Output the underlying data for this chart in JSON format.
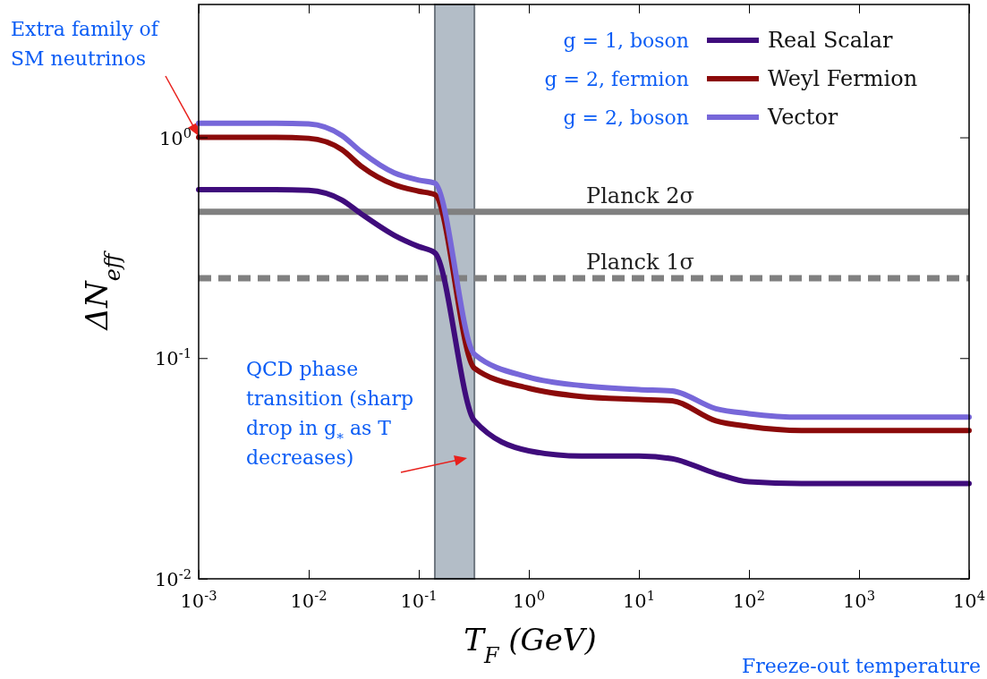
{
  "chart_data": {
    "type": "line",
    "xlabel": "T$_{F}$ (GeV)",
    "ylabel": "ΔN$_{eff}$",
    "log": "xy",
    "xlim": [
      0.001,
      10000
    ],
    "ylim": [
      0.01,
      4
    ],
    "xticks": [
      {
        "value": 0.001,
        "label": "10$^{-3}$"
      },
      {
        "value": 0.01,
        "label": "10$^{-2}$"
      },
      {
        "value": 0.1,
        "label": "10$^{-1}$"
      },
      {
        "value": 1,
        "label": "10$^{0}$"
      },
      {
        "value": 10,
        "label": "10$^{1}$"
      },
      {
        "value": 100,
        "label": "10$^{2}$"
      },
      {
        "value": 1000,
        "label": "10$^{3}$"
      },
      {
        "value": 10000,
        "label": "10$^{4}$"
      }
    ],
    "yticks": [
      {
        "value": 0.01,
        "label": "10$^{-2}$"
      },
      {
        "value": 0.1,
        "label": "10$^{-1}$"
      },
      {
        "value": 1,
        "label": "10$^{0}$"
      }
    ],
    "x": [
      0.001,
      0.005,
      0.01,
      0.02,
      0.03,
      0.06,
      0.1,
      0.14,
      0.32,
      1,
      3,
      10,
      20,
      50,
      100,
      300,
      1000,
      10000
    ],
    "series": [
      {
        "name": "Real Scalar",
        "color": "#3f0c7c",
        "values": [
          0.58,
          0.58,
          0.575,
          0.52,
          0.45,
          0.36,
          0.32,
          0.3,
          0.052,
          0.038,
          0.036,
          0.036,
          0.035,
          0.03,
          0.0275,
          0.027,
          0.027,
          0.027
        ]
      },
      {
        "name": "Weyl Fermion",
        "color": "#8b0a0a",
        "values": [
          1.0,
          1.0,
          0.99,
          0.88,
          0.74,
          0.61,
          0.57,
          0.55,
          0.09,
          0.073,
          0.067,
          0.065,
          0.064,
          0.052,
          0.049,
          0.047,
          0.047,
          0.047
        ]
      },
      {
        "name": "Vector",
        "color": "#7767d9",
        "values": [
          1.16,
          1.16,
          1.15,
          1.02,
          0.86,
          0.69,
          0.64,
          0.62,
          0.104,
          0.082,
          0.075,
          0.072,
          0.071,
          0.059,
          0.056,
          0.054,
          0.054,
          0.054
        ]
      }
    ],
    "ref_lines": [
      {
        "axis": "y",
        "value": 0.46,
        "label": "Planck 2σ",
        "color": "#808080",
        "line_style": "solid"
      },
      {
        "axis": "y",
        "value": 0.23,
        "label": "Planck 1σ",
        "color": "#808080",
        "line_style": "dashed"
      }
    ],
    "bands": [
      {
        "axis": "x",
        "from": 0.14,
        "to": 0.32,
        "color": "#b3bdc7"
      }
    ],
    "legend": "top right",
    "marker": "none",
    "line_style": "solid",
    "grid": false,
    "annotations": [
      "Extra family of SM neutrinos",
      "QCD phase transition (sharp drop in g$_{*}$ as T decreases)",
      "Freeze-out temperature",
      "g = 1, boson",
      "g = 2, fermion",
      "g = 2, boson"
    ]
  }
}
